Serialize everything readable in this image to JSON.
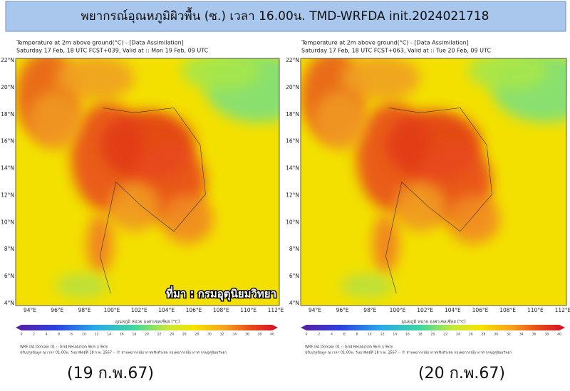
{
  "header": {
    "title": "พยากรณ์อุณหภูมิผิวพื้น (ซ.) เวลา 16.00น. TMD-WRFDA init.2024021718"
  },
  "map_axes": {
    "lat_labels": [
      "22°N",
      "20°N",
      "18°N",
      "16°N",
      "14°N",
      "12°N",
      "10°N",
      "8°N",
      "6°N",
      "4°N"
    ],
    "lon_labels": [
      "94°E",
      "96°E",
      "98°E",
      "100°E",
      "102°E",
      "104°E",
      "106°E",
      "108°E",
      "110°E",
      "112°E"
    ],
    "colorbar_title": "อุณหภูมิ หน่วย องศาเซลเซียส (°C)",
    "colorbar_ticks": [
      "0",
      "2",
      "4",
      "6",
      "8",
      "10",
      "12",
      "14",
      "16",
      "18",
      "20",
      "22",
      "24",
      "26",
      "28",
      "30",
      "32",
      "34",
      "36",
      "38",
      "40"
    ]
  },
  "panels": [
    {
      "title": "Temperature at 2m above ground(°C) - [Data Assimilation]",
      "subtitle": "Saturday 17 Feb, 18 UTC FCST+039, Valid at :: Mon 19 Feb, 09 UTC",
      "footer_line1": "WRF-DA Domain 01 :: Grid Resolution 9km x 9km",
      "footer_line2": "ปรับปรุงข้อมูล ณ เวลา 01:00น. วันอาทิตย์ที่ 18 ก.พ. 2567 -- © ส่วนพยากรณ์อากาศเชิงตัวเลข กองพยากรณ์อากาศ กรมอุตุนิยมวิทยา",
      "caption": "(19 ก.พ.67)"
    },
    {
      "title": "Temperature at 2m above ground(°C) - [Data Assimilation]",
      "subtitle": "Saturday 17 Feb, 18 UTC FCST+063, Valid at :: Tue 20 Feb, 09 UTC",
      "footer_line1": "WRF-DA Domain 01 :: Grid Resolution 9km x 9km",
      "footer_line2": "ปรับปรุงข้อมูล ณ เวลา 01:00น. วันอาทิตย์ที่ 18 ก.พ. 2567 -- © ส่วนพยากรณ์อากาศเชิงตัวเลข กองพยากรณ์อากาศ กรมอุตุนิยมวิทยา",
      "caption": "(20 ก.พ.67)"
    }
  ],
  "source": "ที่มา : กรมอุตุนิยมวิทยา"
}
